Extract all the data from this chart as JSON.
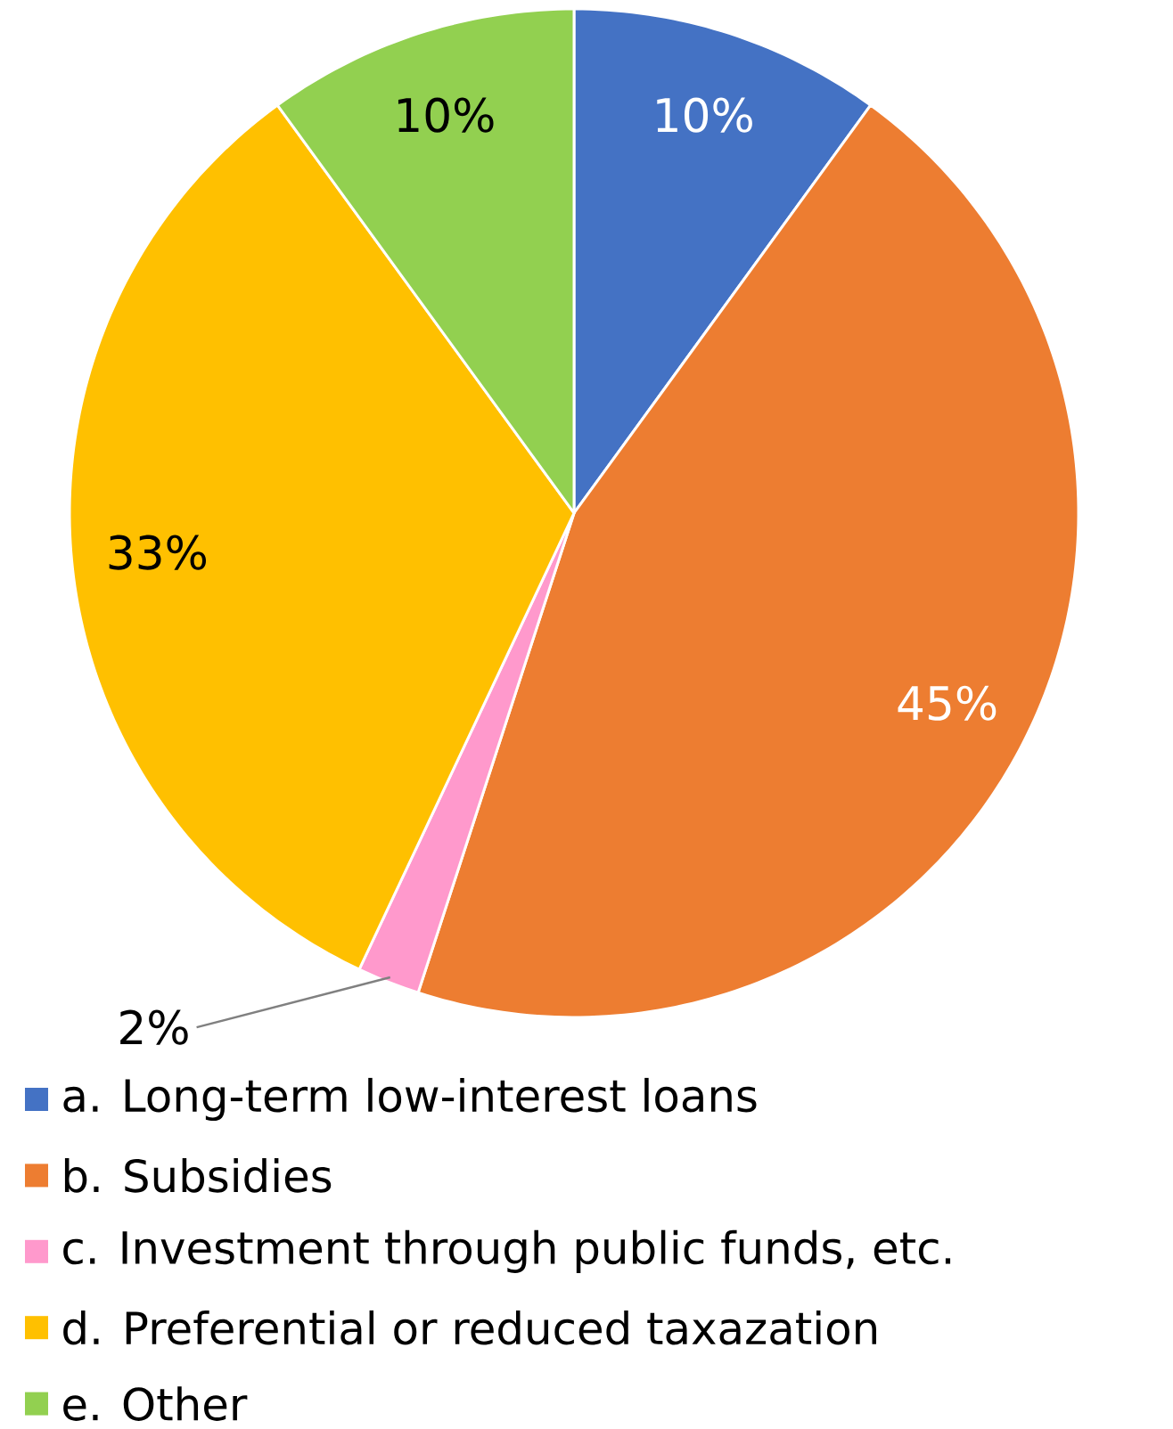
{
  "chart_data": {
    "type": "pie",
    "categories": [
      "a. Long-term low-interest loans",
      "b. Subsidies",
      "c. Investment through public funds, etc.",
      "d. Preferential or reduced taxazation",
      "e. Other"
    ],
    "values": [
      10,
      45,
      2,
      33,
      10
    ],
    "colors": [
      "#4472c4",
      "#ed7d31",
      "#ff99cc",
      "#ffc000",
      "#92d050"
    ],
    "value_labels": [
      "10%",
      "45%",
      "2%",
      "33%",
      "10%"
    ],
    "legend": "bottom"
  }
}
